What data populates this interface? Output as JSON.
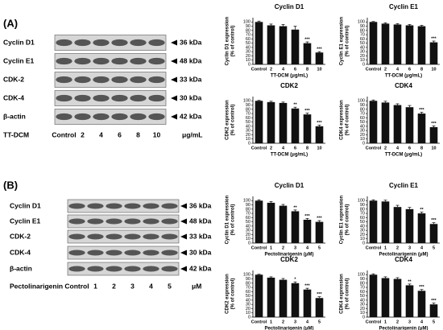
{
  "panels": [
    {
      "label": "(A)",
      "treatment": "TT-DCM",
      "unit": "μg/mL",
      "lanes": [
        "Control",
        "2",
        "4",
        "6",
        "8",
        "10"
      ],
      "rows": [
        {
          "name": "Cyclin D1",
          "size": "36 kDa"
        },
        {
          "name": "Cyclin E1",
          "size": "48 kDa"
        },
        {
          "name": "CDK-2",
          "size": "33 kDa"
        },
        {
          "name": "CDK-4",
          "size": "30 kDa"
        },
        {
          "name": "β-actin",
          "size": "42 kDa"
        }
      ]
    },
    {
      "label": "(B)",
      "treatment": "Pectolinarigenin",
      "unit": "μM",
      "lanes": [
        "Control",
        "1",
        "2",
        "3",
        "4",
        "5"
      ],
      "rows": [
        {
          "name": "Cyclin D1",
          "size": "36 kDa"
        },
        {
          "name": "Cyclin E1",
          "size": "48 kDa"
        },
        {
          "name": "CDK-2",
          "size": "33 kDa"
        },
        {
          "name": "CDK-4",
          "size": "30 kDa"
        },
        {
          "name": "β-actin",
          "size": "42 kDa"
        }
      ]
    }
  ],
  "chart_data": [
    {
      "type": "bar",
      "title": "Cyclin D1",
      "y_label": [
        "Cyclin D1 expression",
        "(% of control)"
      ],
      "x_label": "TT-DCM (μg/mL)",
      "categories": [
        "Control",
        "2",
        "4",
        "6",
        "8",
        "10"
      ],
      "values": [
        100,
        92,
        90,
        82,
        50,
        28
      ],
      "errors": [
        2,
        3,
        4,
        8,
        3,
        2
      ],
      "significance": [
        null,
        null,
        null,
        null,
        "***",
        "***"
      ],
      "color": "#111111",
      "ylim": [
        0,
        110
      ],
      "yticks": [
        0,
        10,
        20,
        30,
        40,
        50,
        60,
        70,
        80,
        90,
        100
      ]
    },
    {
      "type": "bar",
      "title": "Cyclin E1",
      "y_label": [
        "Cyclin E1 expression",
        "(% of control)"
      ],
      "x_label": "TT-DCM (μg/mL)",
      "categories": [
        "Control",
        "2",
        "4",
        "6",
        "8",
        "10"
      ],
      "values": [
        100,
        96,
        94,
        92,
        90,
        52
      ],
      "errors": [
        1,
        2,
        2,
        2,
        2,
        3
      ],
      "significance": [
        null,
        null,
        null,
        null,
        null,
        "***"
      ],
      "color": "#111111",
      "ylim": [
        0,
        110
      ],
      "yticks": [
        0,
        10,
        20,
        30,
        40,
        50,
        60,
        70,
        80,
        90,
        100
      ]
    },
    {
      "type": "bar",
      "title": "CDK2",
      "y_label": [
        "CDK2 expression",
        "(% of control)"
      ],
      "x_label": "TT-DCM (μg/mL)",
      "categories": [
        "Control",
        "2",
        "4",
        "6",
        "8",
        "10"
      ],
      "values": [
        100,
        97,
        95,
        82,
        68,
        40
      ],
      "errors": [
        1,
        2,
        2,
        3,
        3,
        3
      ],
      "significance": [
        null,
        null,
        null,
        "**",
        "***",
        "***"
      ],
      "color": "#111111",
      "ylim": [
        0,
        110
      ],
      "yticks": [
        0,
        10,
        20,
        30,
        40,
        50,
        60,
        70,
        80,
        90,
        100
      ]
    },
    {
      "type": "bar",
      "title": "CDK4",
      "y_label": [
        "CDK4 expression",
        "(% of control)"
      ],
      "x_label": "TT-DCM (μg/mL)",
      "categories": [
        "Control",
        "2",
        "4",
        "6",
        "8",
        "10"
      ],
      "values": [
        100,
        96,
        90,
        85,
        70,
        38
      ],
      "errors": [
        2,
        3,
        3,
        4,
        3,
        3
      ],
      "significance": [
        null,
        null,
        null,
        null,
        "***",
        "***"
      ],
      "color": "#111111",
      "ylim": [
        0,
        110
      ],
      "yticks": [
        0,
        10,
        20,
        30,
        40,
        50,
        60,
        70,
        80,
        90,
        100
      ]
    },
    {
      "type": "bar",
      "title": "Cyclin D1",
      "y_label": [
        "Cyclin D1 expression",
        "(% of control)"
      ],
      "x_label": "Pectolinarigenin (μM)",
      "categories": [
        "Control",
        "1",
        "2",
        "3",
        "4",
        "5"
      ],
      "values": [
        100,
        95,
        88,
        75,
        55,
        50
      ],
      "errors": [
        2,
        3,
        3,
        3,
        3,
        3
      ],
      "significance": [
        null,
        null,
        null,
        "**",
        "***",
        "***"
      ],
      "color": "#111111",
      "ylim": [
        0,
        110
      ],
      "yticks": [
        0,
        10,
        20,
        30,
        40,
        50,
        60,
        70,
        80,
        90,
        100
      ]
    },
    {
      "type": "bar",
      "title": "Cyclin E1",
      "y_label": [
        "Cyclin E1 expression",
        "(% of control)"
      ],
      "x_label": "Pectolinarigenin (μM)",
      "categories": [
        "Control",
        "1",
        "2",
        "3",
        "4",
        "5"
      ],
      "values": [
        100,
        98,
        85,
        80,
        70,
        45
      ],
      "errors": [
        2,
        3,
        4,
        4,
        3,
        3
      ],
      "significance": [
        null,
        null,
        null,
        null,
        "**",
        "***"
      ],
      "color": "#111111",
      "ylim": [
        0,
        110
      ],
      "yticks": [
        0,
        10,
        20,
        30,
        40,
        50,
        60,
        70,
        80,
        90,
        100
      ]
    },
    {
      "type": "bar",
      "title": "CDK2",
      "y_label": [
        "CDK2 expression",
        "(% of control)"
      ],
      "x_label": "Pectolinarigenin (μM)",
      "categories": [
        "Control",
        "1",
        "2",
        "3",
        "4",
        "5"
      ],
      "values": [
        100,
        93,
        88,
        80,
        65,
        45
      ],
      "errors": [
        1,
        2,
        3,
        3,
        3,
        3
      ],
      "significance": [
        null,
        null,
        null,
        "*",
        "***",
        "***"
      ],
      "color": "#111111",
      "ylim": [
        0,
        110
      ],
      "yticks": [
        0,
        10,
        20,
        30,
        40,
        50,
        60,
        70,
        80,
        90,
        100
      ]
    },
    {
      "type": "bar",
      "title": "CDK4",
      "y_label": [
        "CDK4 expression",
        "(% of control)"
      ],
      "x_label": "Pectolinarigenin (μM)",
      "categories": [
        "Control",
        "1",
        "2",
        "3",
        "4",
        "5"
      ],
      "values": [
        100,
        92,
        90,
        75,
        62,
        30
      ],
      "errors": [
        2,
        3,
        3,
        3,
        3,
        3
      ],
      "significance": [
        null,
        null,
        null,
        "**",
        "***",
        "***"
      ],
      "color": "#111111",
      "ylim": [
        0,
        110
      ],
      "yticks": [
        0,
        10,
        20,
        30,
        40,
        50,
        60,
        70,
        80,
        90,
        100
      ]
    }
  ]
}
